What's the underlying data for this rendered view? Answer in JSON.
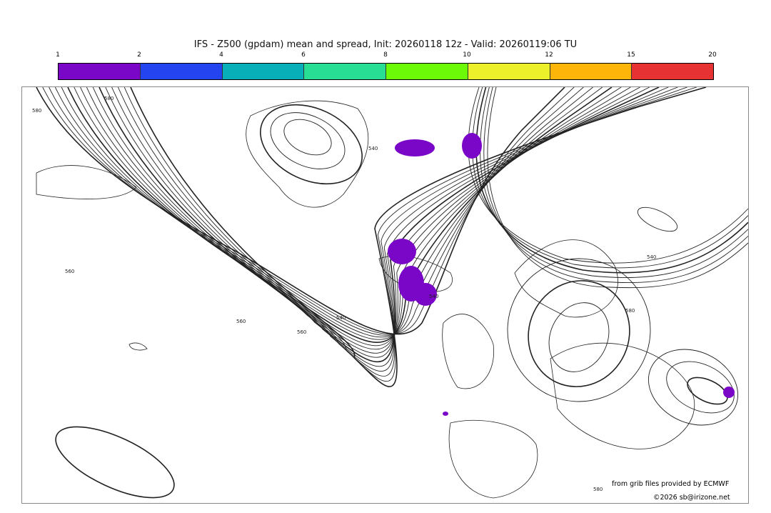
{
  "title": "IFS - Z500 (gpdam) mean and spread, Init: 20260118 12z - Valid: 20260119:06 TU",
  "colorbar": {
    "ticks": [
      "1",
      "2",
      "4",
      "6",
      "8",
      "10",
      "12",
      "15",
      "20"
    ],
    "colors": [
      "#7a06c8",
      "#2444f0",
      "#08aeb8",
      "#27de94",
      "#6cfa08",
      "#ecf02a",
      "#fdb50a",
      "#e63232"
    ]
  },
  "map": {
    "contour_labels": [
      "580",
      "580",
      "560",
      "540",
      "540",
      "560",
      "540",
      "540",
      "580",
      "560",
      "580"
    ],
    "contour_color": "#222222",
    "spread_color": "#7a06c8"
  },
  "credits": {
    "source": "from grib files provided by ECMWF",
    "copyright": "©2026 sb@irizone.net"
  }
}
